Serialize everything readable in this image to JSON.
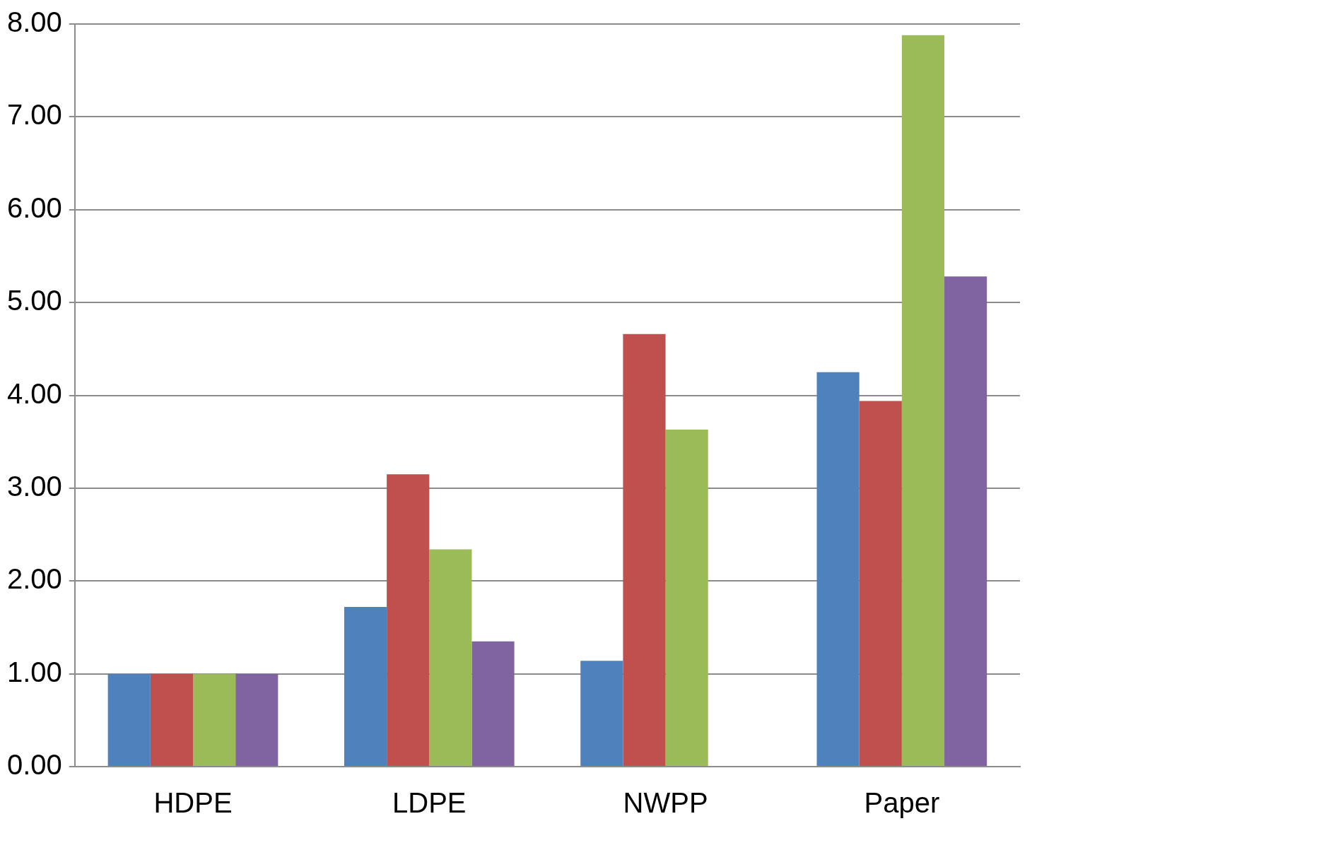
{
  "chart_data": {
    "type": "bar",
    "categories": [
      "HDPE",
      "LDPE",
      "NWPP",
      "Paper"
    ],
    "series": [
      {
        "color": "#4f81bd",
        "values": [
          1.0,
          1.72,
          1.14,
          4.25
        ]
      },
      {
        "color": "#c0504d",
        "values": [
          1.0,
          3.15,
          4.66,
          3.94
        ]
      },
      {
        "color": "#9bbb59",
        "values": [
          1.0,
          2.34,
          3.63,
          7.88
        ]
      },
      {
        "color": "#8064a2",
        "values": [
          1.0,
          1.35,
          null,
          5.28
        ]
      }
    ],
    "ylim": [
      0,
      8
    ],
    "yticks": [
      {
        "value": 0,
        "label": "0.00"
      },
      {
        "value": 1,
        "label": "1.00"
      },
      {
        "value": 2,
        "label": "2.00"
      },
      {
        "value": 3,
        "label": "3.00"
      },
      {
        "value": 4,
        "label": "4.00"
      },
      {
        "value": 5,
        "label": "5.00"
      },
      {
        "value": 6,
        "label": "6.00"
      },
      {
        "value": 7,
        "label": "7.00"
      },
      {
        "value": 8,
        "label": "8.00"
      }
    ],
    "grid": "y",
    "legend": false
  }
}
